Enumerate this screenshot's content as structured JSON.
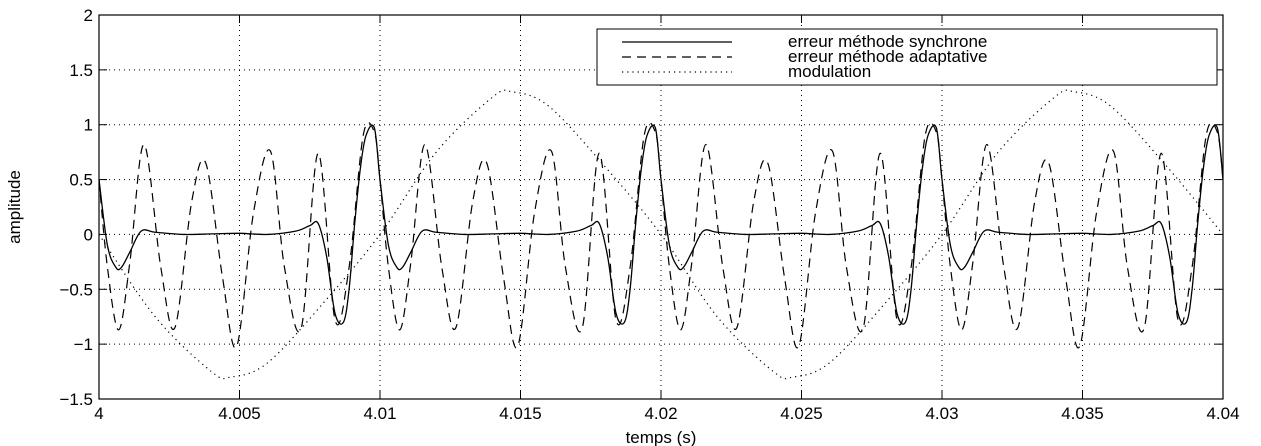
{
  "chart_data": {
    "type": "line",
    "title": "",
    "xlabel": "temps (s)",
    "ylabel": "amplitude",
    "xlim": [
      4,
      4.04
    ],
    "ylim": [
      -1.5,
      2
    ],
    "grid": true,
    "legend_position": "top-right",
    "x_ticks": [
      "4",
      "4.005",
      "4.01",
      "4.015",
      "4.02",
      "4.025",
      "4.03",
      "4.035",
      "4.04"
    ],
    "y_ticks": [
      "2",
      "1.5",
      "1",
      "0.5",
      "0",
      "−0.5",
      "−1",
      "−1.5"
    ],
    "series": [
      {
        "name": "erreur méthode synchrone",
        "style": "solid",
        "period": 0.01,
        "x": [
          4.0,
          4.0003,
          4.0006,
          4.0008,
          4.0011,
          4.0015,
          4.002,
          4.003,
          4.004,
          4.005,
          4.006,
          4.007,
          4.0075,
          4.0078,
          4.0081,
          4.0084,
          4.0087,
          4.0089,
          4.0091,
          4.0093,
          4.0095,
          4.0098,
          4.01
        ],
        "y": [
          0.5,
          -0.1,
          -0.3,
          -0.3,
          -0.16,
          0.03,
          0.02,
          0.0,
          0.005,
          0.01,
          0.0,
          0.03,
          0.08,
          0.1,
          -0.2,
          -0.72,
          -0.8,
          -0.5,
          0.1,
          0.6,
          0.9,
          0.97,
          0.5
        ]
      },
      {
        "name": "erreur méthode adaptative",
        "style": "dashed",
        "period": 0.01,
        "x": [
          4.0,
          4.0003,
          4.0007,
          4.0011,
          4.0016,
          4.0022,
          4.0027,
          4.0033,
          4.0038,
          4.0044,
          4.0049,
          4.0055,
          4.0061,
          4.0066,
          4.0072,
          4.0078,
          4.0084,
          4.0089,
          4.0094,
          4.0098,
          4.01
        ],
        "y": [
          0.5,
          -0.3,
          -0.87,
          -0.25,
          0.82,
          -0.3,
          -0.85,
          0.3,
          0.65,
          -0.4,
          -1.02,
          0.2,
          0.76,
          -0.3,
          -0.85,
          0.74,
          -0.78,
          -0.3,
          0.9,
          0.93,
          0.5
        ]
      },
      {
        "name": "modulation",
        "style": "dotted",
        "period": 0.02,
        "x": [
          4.0,
          4.002,
          4.004,
          4.0047,
          4.006,
          4.008,
          4.01,
          4.012,
          4.014,
          4.0147,
          4.016,
          4.018,
          4.02
        ],
        "y": [
          0.0,
          -0.75,
          -1.25,
          -1.3,
          -1.17,
          -0.62,
          0.0,
          0.75,
          1.25,
          1.3,
          1.17,
          0.62,
          0.0
        ]
      }
    ]
  }
}
